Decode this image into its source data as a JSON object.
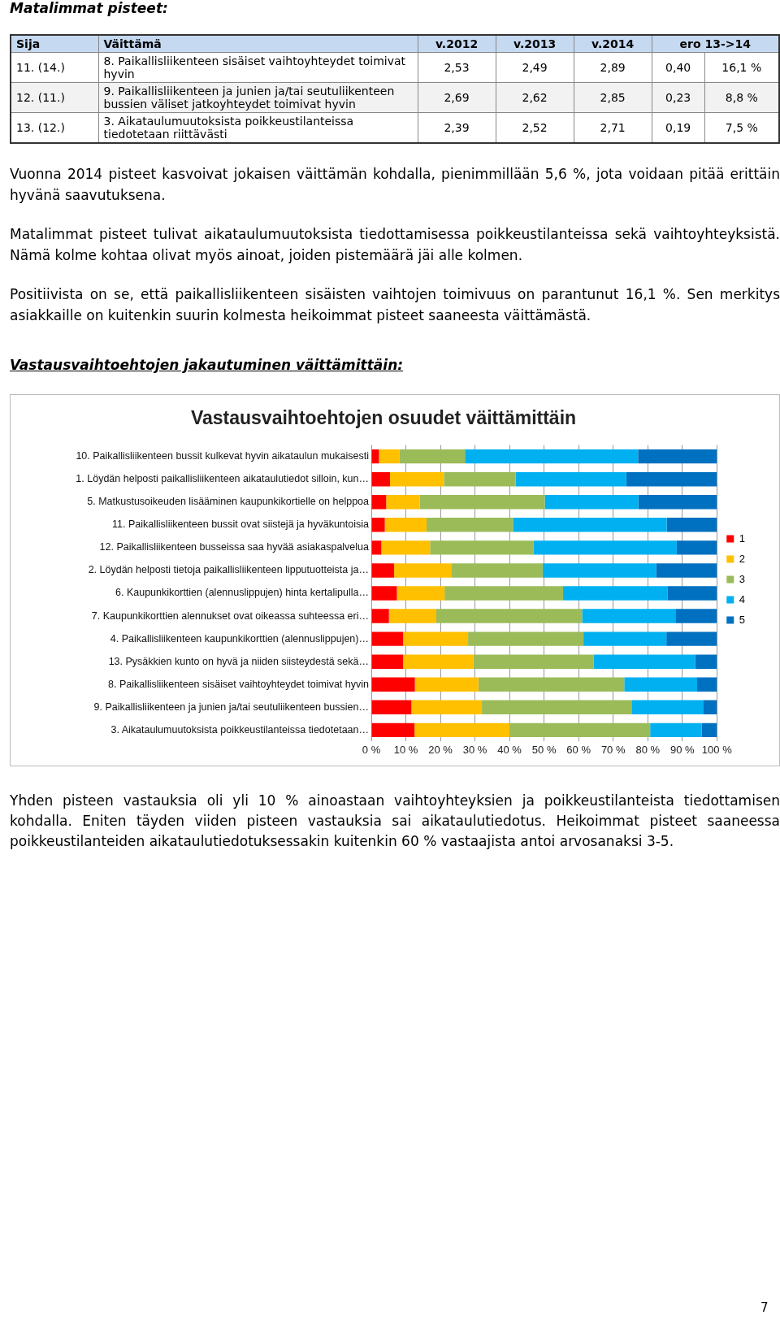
{
  "chart_data": [
    {
      "type": "other",
      "title": "Matalimmat pisteet:",
      "annotations": [
        "Sija\tVäittämä\tv.2012\tv.2013\tv.2014\tero 13->14",
        "11. (14.)\t8. Paikallisliikenteen sisäiset vaihtoyhteydet toimivat hyvin\t2,53\t2,49\t2,89\t0,40\t16,1 %",
        "12. (11.)\t9. Paikallisliikenteen ja junien ja/tai seutuliikenteen bussien väliset jatkoyhteydet toimivat hyvin\t2,69\t2,62\t2,85\t0,23\t8,8 %",
        "13. (12.)\t3. Aikataulumuutoksista poikkeustilanteissa tiedotetaan riittävästi\t2,39\t2,52\t2,71\t0,19\t7,5 %"
      ]
    },
    {
      "type": "other",
      "annotations": [
        "Vuonna 2014 pisteet kasvoivat jokaisen väittämän kohdalla, pienimmillään 5,6 %, jota voidaan pitää erittäin hyvänä saavutuksena.",
        "Matalimmat pisteet tulivat aikataulumuutoksista tiedottamisessa poikkeustilanteissa sekä vaihtoyhteyksistä. Nämä kolme kohtaa olivat myös ainoat, joiden pistemäärä jäi alle kolmen.",
        "Positiivista on se, että paikallisliikenteen sisäisten vaihtojen toimivuus on parantunut 16,1 %. Sen merkitys asiakkaille on kuitenkin suurin kolmesta heikoimmat pisteet saaneesta väittämästä."
      ]
    },
    {
      "type": "bar",
      "title": "Vastausvaihtoehtojen jakautuminen väittämittäin:",
      "subtitle": "Vastausvaihtoehtojen osuudet väittämittäin",
      "orientation": "horizontal",
      "stacked": true,
      "grid": "x",
      "legend": "right",
      "categories": [
        "10. Paikallisliikenteen bussit kulkevat hyvin aikataulun mukaisesti",
        "1. Löydän helposti paikallisliikenteen aikataulutiedot silloin, kun…",
        "5. Matkustusoikeuden lisääminen kaupunkikortielle on helppoa",
        "11. Paikallisliikenteen bussit ovat siistejä ja hyväkuntoisia",
        "12. Paikallisliikenteen busseissa saa hyvää asiakaspalvelua",
        "2. Löydän helposti tietoja paikallisliikenteen lipputuotteista ja…",
        "6. Kaupunkikorttien (alennuslippujen) hinta kertalipulla…",
        "7. Kaupunkikorttien alennukset ovat oikeassa suhteessa eri…",
        "4. Paikallisliikenteen kaupunkikorttien (alennuslippujen)…",
        "13. Pysäkkien kunto on hyvä ja niiden siisteydestä sekä…",
        "8. Paikallisliikenteen sisäiset vaihtoyhteydet toimivat hyvin",
        "9. Paikallisliikenteen ja junien ja/tai seutuliikenteen bussien…",
        "3. Aikataulumuutoksista poikkeustilanteissa tiedotetaan…"
      ],
      "series": [
        {
          "name": "1",
          "color": "#ff0000",
          "values": [
            2.2,
            5.4,
            4.3,
            3.9,
            2.9,
            6.6,
            7.4,
            5.1,
            9.2,
            9.2,
            12.6,
            11.6,
            12.5
          ]
        },
        {
          "name": "2",
          "color": "#ffc000",
          "values": [
            6.0,
            15.6,
            9.7,
            12.1,
            14.1,
            16.5,
            13.8,
            13.7,
            18.8,
            20.4,
            18.4,
            20.4,
            27.5
          ]
        },
        {
          "name": "3",
          "color": "#9bbb59",
          "values": [
            18.9,
            20.8,
            36.2,
            25.0,
            30.0,
            26.5,
            34.3,
            42.2,
            33.4,
            34.7,
            42.2,
            43.3,
            40.7
          ]
        },
        {
          "name": "4",
          "color": "#00b0f0",
          "values": [
            50.1,
            32.0,
            27.1,
            44.5,
            41.4,
            32.8,
            30.3,
            27.0,
            24.0,
            29.4,
            21.1,
            20.7,
            14.9
          ]
        },
        {
          "name": "5",
          "color": "#0070c0",
          "values": [
            22.8,
            26.2,
            22.7,
            14.5,
            11.6,
            17.6,
            14.2,
            12.0,
            14.6,
            6.3,
            5.7,
            4.0,
            4.4
          ]
        }
      ],
      "xlim": [
        0,
        100
      ],
      "xticks": [
        {
          "value": 0,
          "label": "0 %"
        },
        {
          "value": 10,
          "label": "10 %"
        },
        {
          "value": 20,
          "label": "20 %"
        },
        {
          "value": 30,
          "label": "30 %"
        },
        {
          "value": 40,
          "label": "40 %"
        },
        {
          "value": 50,
          "label": "50 %"
        },
        {
          "value": 60,
          "label": "60 %"
        },
        {
          "value": 70,
          "label": "70 %"
        },
        {
          "value": 80,
          "label": "80 %"
        },
        {
          "value": 90,
          "label": "90 %"
        },
        {
          "value": 100,
          "label": "100 %"
        }
      ],
      "annotations": [
        "Yhden pisteen vastauksia oli yli 10 % ainoastaan vaihtoyhteyksien ja poikkeustilanteista tiedottamisen kohdalla. Eniten täyden viiden pisteen vastauksia sai aikataulutiedotus. Heikoimmat pisteet saaneessa poikkeustilanteiden aikataulutiedotuksessakin kuitenkin 60 % vastaajista antoi arvosanaksi 3-5.",
        "7"
      ]
    }
  ]
}
